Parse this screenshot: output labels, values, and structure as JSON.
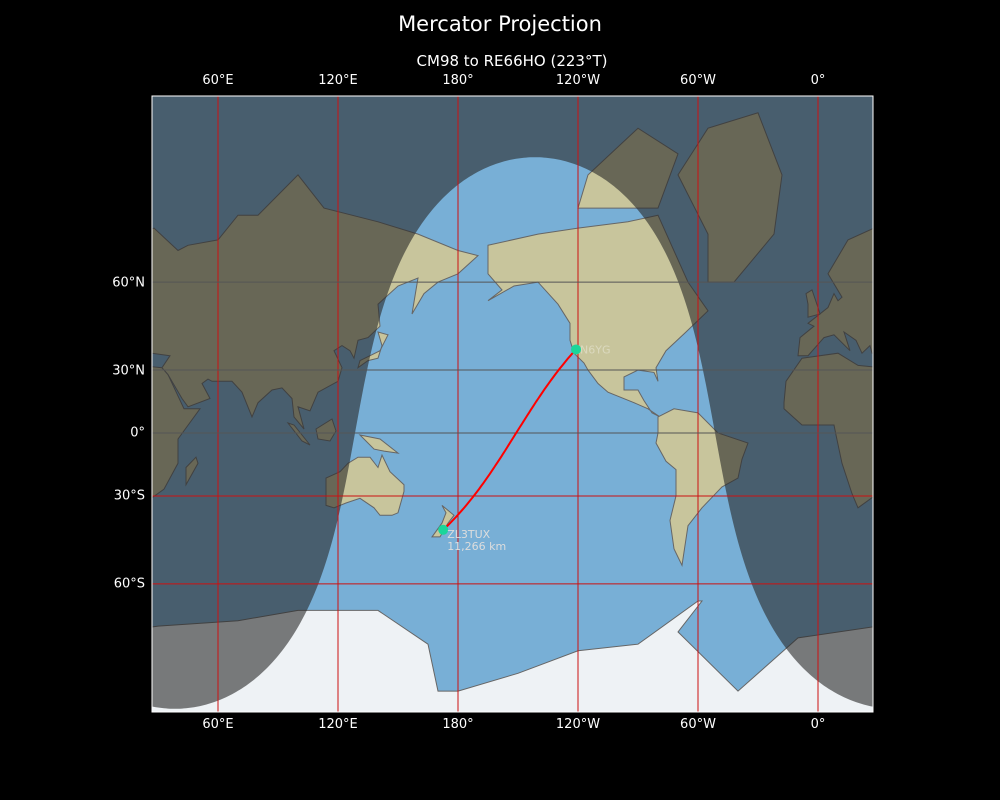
{
  "title": "Mercator Projection",
  "subtitle": "CM98 to RE66HO (223°T)",
  "x_ticks": [
    "60°E",
    "120°E",
    "180°",
    "120°W",
    "60°W",
    "0°"
  ],
  "y_ticks": [
    "60°N",
    "30°N",
    "0°",
    "30°S",
    "60°S"
  ],
  "path": {
    "from": {
      "locator": "CM98",
      "label": "N6YG",
      "lat": 38.5,
      "lon": -121.0
    },
    "to": {
      "locator": "RE66HO",
      "label": "ZL3TUX",
      "lat": -43.5,
      "lon": 172.6
    },
    "distance_label": "11,266 km",
    "bearing": "223°T"
  },
  "colors": {
    "path": "#ff0000",
    "marker": "#1ad69a",
    "grid": "#cc1111",
    "ocean": "#78afd6",
    "land": "#c8c59c",
    "ice": "#eef2f5",
    "shade": "#282828"
  }
}
